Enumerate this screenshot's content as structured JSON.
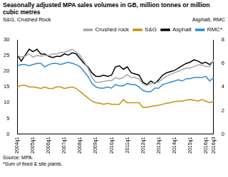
{
  "chart_data": {
    "type": "line",
    "title": "Seasonally adjusted MPA sales volumes in GB, million tonnes or million cubic metres",
    "y_label": "S&G, Crushed Rock",
    "y2_label": "Asphalt, RMC",
    "annotations": [
      "Source: MPA.",
      "*Sum of fixed & site plants."
    ],
    "categories": [
      "2004q1",
      null,
      null,
      null,
      "2005q1",
      null,
      null,
      null,
      "2006q1",
      null,
      null,
      null,
      "2007q1",
      null,
      null,
      null,
      "2008q1",
      null,
      null,
      null,
      "2009q1",
      null,
      null,
      null,
      "2010q1",
      null,
      null,
      null,
      "2011q1",
      null,
      null,
      null,
      "2012q1",
      null,
      null,
      null,
      "2013q1",
      null,
      null,
      null,
      "2014q1",
      null,
      null,
      null,
      "2015q1",
      null,
      null,
      null,
      "2016q1",
      null,
      "2016q3"
    ],
    "series": [
      {
        "name": "Crushed rock",
        "color": "#a6a6a6",
        "values": [
          25,
          24.5,
          24.8,
          25.5,
          24.5,
          25,
          24.8,
          25,
          25,
          25.5,
          25.5,
          26,
          26,
          26.5,
          27,
          26,
          25,
          23,
          21,
          18,
          16.5,
          16.5,
          16.8,
          17,
          17,
          18,
          17.5,
          18,
          19,
          18,
          18,
          17.5,
          16,
          15.5,
          16,
          16.5,
          16.5,
          17.5,
          18.5,
          19,
          19.5,
          20,
          20.5,
          21,
          21,
          21.5,
          22,
          22,
          21.5,
          21.5,
          23.5
        ]
      },
      {
        "name": "S&G",
        "color": "#c8900f",
        "values": [
          15,
          15.5,
          15.5,
          15,
          15,
          14.8,
          14.5,
          15,
          14.5,
          14.5,
          15,
          15,
          14.5,
          14.8,
          15,
          14.5,
          13.5,
          12.5,
          11.5,
          10.5,
          10,
          9.8,
          9.5,
          9.8,
          9.5,
          9.5,
          9.5,
          11,
          10,
          10,
          10,
          10,
          8.5,
          8.5,
          8.8,
          9,
          9.2,
          9.5,
          9.8,
          10,
          10.3,
          10.5,
          10.5,
          10.8,
          11,
          10.8,
          10.5,
          11,
          10.5,
          10,
          10.5
        ]
      },
      {
        "name": "Asphalt",
        "color": "#000000",
        "axis": "y2",
        "values": [
          6.7,
          6.2,
          6.7,
          7.2,
          7,
          7.2,
          6.8,
          6.8,
          6.6,
          6.5,
          6.6,
          6.6,
          6.8,
          6.7,
          6.9,
          6.8,
          6.4,
          6,
          5.7,
          5.2,
          4.9,
          4.9,
          5,
          4.9,
          5,
          5.7,
          5.8,
          5.5,
          5.7,
          5.2,
          5.1,
          5,
          4.4,
          4.2,
          4.5,
          4.3,
          4.6,
          5,
          5.2,
          5.3,
          5.4,
          5.6,
          5.8,
          6,
          6.1,
          6.3,
          6.2,
          6,
          6.1,
          5.9,
          6.2
        ]
      },
      {
        "name": "RMC*",
        "color": "#2e8bd6",
        "axis": "y2",
        "values": [
          5.8,
          5.9,
          5.9,
          5.8,
          5.9,
          6,
          6,
          5.7,
          5.9,
          6,
          6,
          5.9,
          6,
          6.1,
          6,
          5.9,
          5.7,
          5.3,
          4.9,
          4.3,
          4,
          3.9,
          3.9,
          4,
          3.9,
          4.2,
          4.1,
          4.1,
          4.3,
          4.2,
          4.2,
          4,
          3.7,
          3.6,
          3.6,
          3.9,
          3.9,
          4.2,
          4.3,
          4.4,
          4.5,
          4.6,
          4.5,
          4.7,
          4.7,
          4.8,
          4.8,
          4.8,
          4.9,
          4.5,
          4.8
        ]
      }
    ],
    "ylim": [
      0,
      30
    ],
    "yticks": [
      0,
      5,
      10,
      15,
      20,
      25,
      30
    ],
    "y2lim": [
      0,
      8
    ],
    "y2ticks": [
      0,
      2,
      4,
      6,
      8
    ],
    "grid": false,
    "legend": "top"
  }
}
